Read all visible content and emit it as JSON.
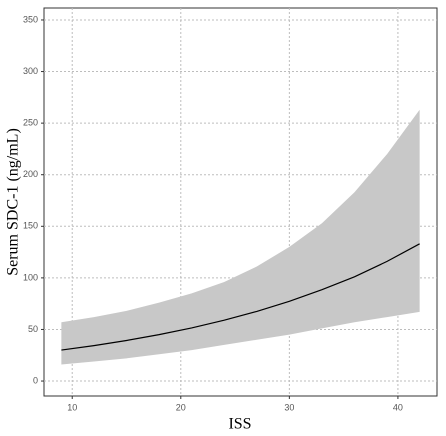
{
  "chart_data": {
    "type": "line",
    "x_label": "ISS",
    "y_label": "Serum SDC-1 (ng/mL)",
    "x": [
      9,
      12,
      15,
      18,
      21,
      24,
      27,
      30,
      33,
      36,
      39,
      42
    ],
    "series": [
      {
        "color": "#000000",
        "values": [
          30,
          34.3,
          39.3,
          45,
          51.5,
          59,
          67.5,
          77.3,
          88.5,
          101,
          116,
          133
        ]
      }
    ],
    "band": {
      "color": "#c8c8c8",
      "lower": [
        16,
        19,
        22,
        26,
        30,
        35,
        40,
        45,
        51,
        57,
        62,
        67
      ],
      "upper": [
        57,
        62,
        68,
        76,
        85,
        96,
        111,
        130,
        153,
        183,
        220,
        263
      ]
    },
    "xlim": [
      7.4,
      43.6
    ],
    "xticks": [
      10,
      20,
      30,
      40
    ],
    "ylim": [
      -14.5,
      361.6
    ],
    "yticks": [
      0,
      50,
      100,
      150,
      200,
      250,
      300,
      350
    ],
    "grid": true
  }
}
